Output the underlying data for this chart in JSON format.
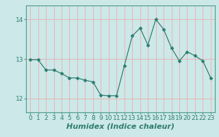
{
  "x": [
    0,
    1,
    2,
    3,
    4,
    5,
    6,
    7,
    8,
    9,
    10,
    11,
    12,
    13,
    14,
    15,
    16,
    17,
    18,
    19,
    20,
    21,
    22,
    23
  ],
  "y": [
    12.98,
    12.98,
    12.72,
    12.72,
    12.63,
    12.52,
    12.52,
    12.46,
    12.42,
    12.08,
    12.07,
    12.07,
    12.83,
    13.58,
    13.78,
    13.35,
    14.0,
    13.75,
    13.28,
    12.95,
    13.18,
    13.08,
    12.95,
    12.52
  ],
  "line_color": "#2e7d6e",
  "marker": "D",
  "marker_size": 2.5,
  "bg_color": "#cce8e8",
  "grid_color": "#e8b4b4",
  "xlabel": "Humidex (Indice chaleur)",
  "xlabel_fontsize": 8,
  "ylim": [
    11.65,
    14.35
  ],
  "xlim": [
    -0.5,
    23.5
  ],
  "yticks": [
    12,
    13,
    14
  ],
  "xticks": [
    0,
    1,
    2,
    3,
    4,
    5,
    6,
    7,
    8,
    9,
    10,
    11,
    12,
    13,
    14,
    15,
    16,
    17,
    18,
    19,
    20,
    21,
    22,
    23
  ],
  "tick_fontsize": 6.5,
  "spine_color": "#4a9a8a"
}
